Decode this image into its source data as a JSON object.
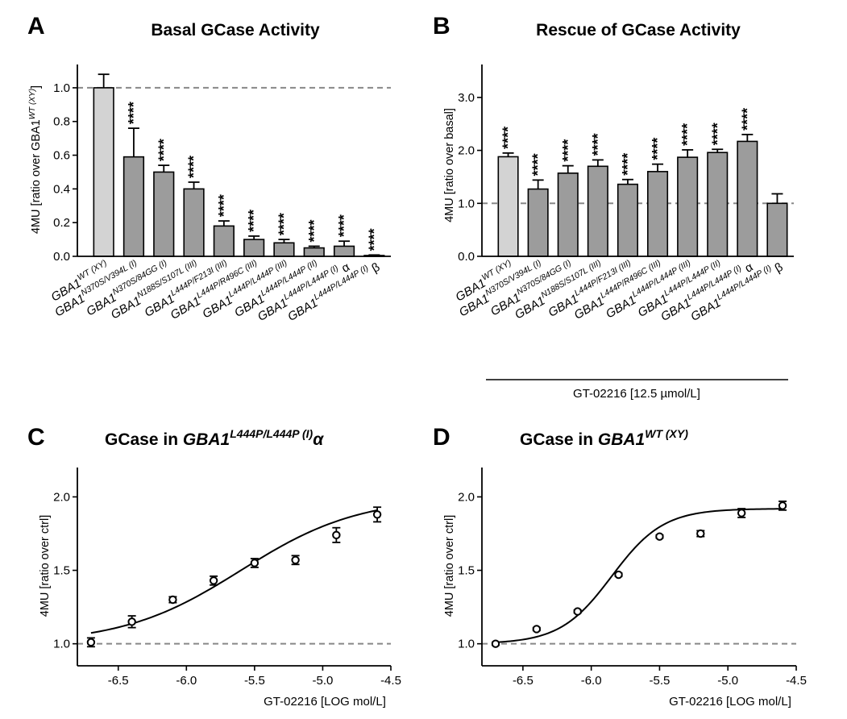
{
  "figure": {
    "panels": [
      {
        "letter": "A",
        "title": "Basal GCase Activity"
      },
      {
        "letter": "B",
        "title": "Rescue of GCase Activity"
      },
      {
        "letter": "C",
        "title_prefix": "GCase in ",
        "title_gene": "GBA1",
        "title_sup": "L444P/L444P (I)",
        "title_suffix": "α"
      },
      {
        "letter": "D",
        "title_prefix": "GCase in ",
        "title_gene": "GBA1",
        "title_sup": "WT (XY)",
        "title_suffix": ""
      }
    ],
    "treatment_label": "GT-02216 [12.5 µmol/L]"
  },
  "chart_data": [
    {
      "type": "bar",
      "panel": "A",
      "title": "Basal GCase Activity",
      "ylabel_prefix": "4MU [ratio over GBA1",
      "ylabel_sup": "WT (XY)",
      "ylabel_suffix": "]",
      "ylim": [
        0,
        1.1
      ],
      "yticks": [
        0.0,
        0.2,
        0.4,
        0.6,
        0.8,
        1.0
      ],
      "ytick_labels": [
        "0.0",
        "0.2",
        "0.4",
        "0.6",
        "0.8",
        "1.0"
      ],
      "reference_line": 1.0,
      "categories": [
        {
          "gene": "GBA1",
          "sup": "WT (XY)",
          "suffix": ""
        },
        {
          "gene": "GBA1",
          "sup": "N370S/V394L (I)",
          "suffix": ""
        },
        {
          "gene": "GBA1",
          "sup": "N370S/84GG (I)",
          "suffix": ""
        },
        {
          "gene": "GBA1",
          "sup": "N188S/S107L (III)",
          "suffix": ""
        },
        {
          "gene": "GBA1",
          "sup": "L444P/F213I (III)",
          "suffix": ""
        },
        {
          "gene": "GBA1",
          "sup": "L444P/R496C (III)",
          "suffix": ""
        },
        {
          "gene": "GBA1",
          "sup": "L444P/L444P (III)",
          "suffix": ""
        },
        {
          "gene": "GBA1",
          "sup": "L444P/L444P (II)",
          "suffix": ""
        },
        {
          "gene": "GBA1",
          "sup": "L444P/L444P (I)",
          "suffix": "α"
        },
        {
          "gene": "GBA1",
          "sup": "L444P/L444P (I)",
          "suffix": "β"
        }
      ],
      "values": [
        1.0,
        0.59,
        0.5,
        0.4,
        0.18,
        0.1,
        0.08,
        0.05,
        0.06,
        0.005
      ],
      "errors": [
        0.08,
        0.17,
        0.04,
        0.04,
        0.03,
        0.02,
        0.02,
        0.01,
        0.03,
        0.003
      ],
      "colors": [
        "#d3d3d3",
        "#9c9c9c",
        "#9c9c9c",
        "#9c9c9c",
        "#9c9c9c",
        "#9c9c9c",
        "#9c9c9c",
        "#9c9c9c",
        "#9c9c9c",
        "#9c9c9c"
      ],
      "significance": [
        "",
        "****",
        "****",
        "****",
        "****",
        "****",
        "****",
        "****",
        "****",
        "****"
      ]
    },
    {
      "type": "bar",
      "panel": "B",
      "title": "Rescue of GCase Activity",
      "ylabel": "4MU [ratio over basal]",
      "ylim": [
        0,
        3.5
      ],
      "yticks": [
        0.0,
        1.0,
        2.0,
        3.0
      ],
      "ytick_labels": [
        "0.0",
        "1.0",
        "2.0",
        "3.0"
      ],
      "reference_line": 1.0,
      "categories": [
        {
          "gene": "GBA1",
          "sup": "WT (XY)",
          "suffix": ""
        },
        {
          "gene": "GBA1",
          "sup": "N370S/V394L (I)",
          "suffix": ""
        },
        {
          "gene": "GBA1",
          "sup": "N370S/84GG (I)",
          "suffix": ""
        },
        {
          "gene": "GBA1",
          "sup": "N188S/S107L (III)",
          "suffix": ""
        },
        {
          "gene": "GBA1",
          "sup": "L444P/F213I (III)",
          "suffix": ""
        },
        {
          "gene": "GBA1",
          "sup": "L444P/R496C (III)",
          "suffix": ""
        },
        {
          "gene": "GBA1",
          "sup": "L444P/L444P (III)",
          "suffix": ""
        },
        {
          "gene": "GBA1",
          "sup": "L444P/L444P (II)",
          "suffix": ""
        },
        {
          "gene": "GBA1",
          "sup": "L444P/L444P (I)",
          "suffix": "α"
        },
        {
          "gene": "GBA1",
          "sup": "L444P/L444P (I)",
          "suffix": "β"
        }
      ],
      "values": [
        1.88,
        1.27,
        1.57,
        1.7,
        1.36,
        1.6,
        1.87,
        1.96,
        2.17,
        1.0
      ],
      "errors": [
        0.07,
        0.17,
        0.14,
        0.12,
        0.09,
        0.14,
        0.14,
        0.06,
        0.13,
        0.18
      ],
      "colors": [
        "#d3d3d3",
        "#9c9c9c",
        "#9c9c9c",
        "#9c9c9c",
        "#9c9c9c",
        "#9c9c9c",
        "#9c9c9c",
        "#9c9c9c",
        "#9c9c9c",
        "#9c9c9c"
      ],
      "significance": [
        "****",
        "****",
        "****",
        "****",
        "****",
        "****",
        "****",
        "****",
        "****",
        ""
      ]
    },
    {
      "type": "scatter",
      "panel": "C",
      "xlabel": "GT-02216 [LOG mol/L]",
      "ylabel": "4MU [ratio over ctrl]",
      "xlim": [
        -6.8,
        -4.5
      ],
      "ylim": [
        0.85,
        2.2
      ],
      "xticks": [
        -6.5,
        -6.0,
        -5.5,
        -5.0,
        -4.5
      ],
      "xtick_labels": [
        "-6.5",
        "-6.0",
        "-5.5",
        "-5.0",
        "-4.5"
      ],
      "yticks": [
        1.0,
        1.5,
        2.0
      ],
      "ytick_labels": [
        "1.0",
        "1.5",
        "2.0"
      ],
      "reference_line": 1.0,
      "x": [
        -6.7,
        -6.4,
        -6.1,
        -5.8,
        -5.5,
        -5.2,
        -4.9,
        -4.6
      ],
      "y": [
        1.01,
        1.15,
        1.3,
        1.43,
        1.55,
        1.57,
        1.74,
        1.88
      ],
      "errors": [
        0.03,
        0.04,
        0.02,
        0.03,
        0.03,
        0.03,
        0.05,
        0.05
      ],
      "fit": {
        "bottom": 1.0,
        "top": 2.0,
        "logEC50": -5.6,
        "hill": 1.0,
        "x_range": [
          -6.7,
          -4.6
        ]
      }
    },
    {
      "type": "scatter",
      "panel": "D",
      "xlabel": "GT-02216 [LOG mol/L]",
      "ylabel": "4MU [ratio over ctrl]",
      "xlim": [
        -6.8,
        -4.5
      ],
      "ylim": [
        0.85,
        2.2
      ],
      "xticks": [
        -6.5,
        -6.0,
        -5.5,
        -5.0,
        -4.5
      ],
      "xtick_labels": [
        "-6.5",
        "-6.0",
        "-5.5",
        "-5.0",
        "-4.5"
      ],
      "yticks": [
        1.0,
        1.5,
        2.0
      ],
      "ytick_labels": [
        "1.0",
        "1.5",
        "2.0"
      ],
      "reference_line": 1.0,
      "x": [
        -6.7,
        -6.4,
        -6.1,
        -5.8,
        -5.5,
        -5.2,
        -4.9,
        -4.6
      ],
      "y": [
        1.0,
        1.1,
        1.22,
        1.47,
        1.73,
        1.75,
        1.89,
        1.94
      ],
      "errors": [
        0.01,
        0.01,
        0.01,
        0.01,
        0.01,
        0.02,
        0.03,
        0.03
      ],
      "fit": {
        "bottom": 1.0,
        "top": 1.92,
        "logEC50": -5.85,
        "hill": 2.3,
        "x_range": [
          -6.72,
          -4.6
        ]
      }
    }
  ]
}
